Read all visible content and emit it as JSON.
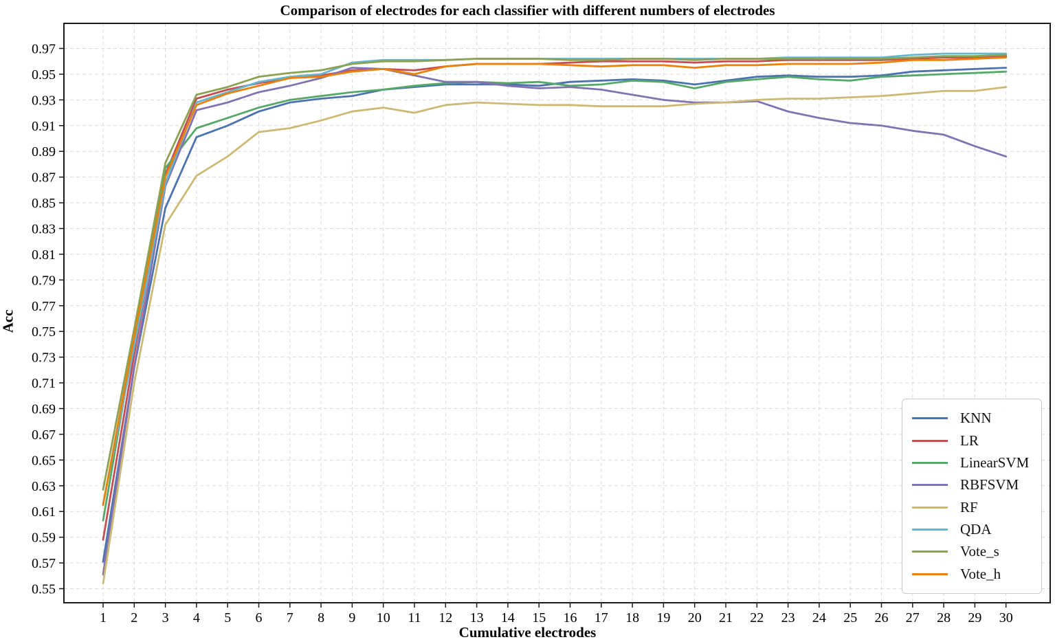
{
  "chart_data": {
    "type": "line",
    "title": "Comparison of electrodes for each classifier with different numbers of electrodes",
    "xlabel": "Cumulative electrodes",
    "ylabel": "Acc",
    "x": [
      1,
      2,
      3,
      4,
      5,
      6,
      7,
      8,
      9,
      10,
      11,
      12,
      13,
      14,
      15,
      16,
      17,
      18,
      19,
      20,
      21,
      22,
      23,
      24,
      25,
      26,
      27,
      28,
      29,
      30
    ],
    "xticks": [
      1,
      2,
      3,
      4,
      5,
      6,
      7,
      8,
      9,
      10,
      11,
      12,
      13,
      14,
      15,
      16,
      17,
      18,
      19,
      20,
      21,
      22,
      23,
      24,
      25,
      26,
      27,
      28,
      29,
      30
    ],
    "ylim": [
      0.55,
      0.97
    ],
    "ytick_step": 0.02,
    "yticks": [
      0.55,
      0.57,
      0.59,
      0.61,
      0.63,
      0.65,
      0.67,
      0.69,
      0.71,
      0.73,
      0.75,
      0.77,
      0.79,
      0.81,
      0.83,
      0.85,
      0.87,
      0.89,
      0.91,
      0.93,
      0.95,
      0.97
    ],
    "grid": true,
    "grid_style": "dashed",
    "legend_position": "lower right",
    "legend_order": [
      "KNN",
      "LR",
      "LinearSVM",
      "RBFSVM",
      "RF",
      "QDA",
      "Vote_s",
      "Vote_h"
    ],
    "series": [
      {
        "name": "KNN",
        "color": "#4C72B0",
        "values": [
          0.571,
          0.722,
          0.846,
          0.901,
          0.91,
          0.921,
          0.928,
          0.931,
          0.933,
          0.938,
          0.94,
          0.942,
          0.942,
          0.942,
          0.941,
          0.944,
          0.945,
          0.946,
          0.945,
          0.942,
          0.945,
          0.948,
          0.949,
          0.948,
          0.948,
          0.949,
          0.952,
          0.953,
          0.954,
          0.955
        ]
      },
      {
        "name": "LR",
        "color": "#C44E52",
        "values": [
          0.588,
          0.732,
          0.872,
          0.931,
          0.938,
          0.943,
          0.947,
          0.949,
          0.953,
          0.954,
          0.953,
          0.956,
          0.958,
          0.958,
          0.958,
          0.959,
          0.96,
          0.96,
          0.96,
          0.959,
          0.96,
          0.96,
          0.961,
          0.961,
          0.961,
          0.961,
          0.962,
          0.963,
          0.963,
          0.964
        ]
      },
      {
        "name": "LinearSVM",
        "color": "#55A868",
        "values": [
          0.603,
          0.744,
          0.877,
          0.908,
          0.916,
          0.924,
          0.93,
          0.933,
          0.936,
          0.938,
          0.941,
          0.943,
          0.944,
          0.943,
          0.944,
          0.941,
          0.942,
          0.945,
          0.944,
          0.939,
          0.944,
          0.946,
          0.948,
          0.946,
          0.945,
          0.948,
          0.949,
          0.95,
          0.951,
          0.952
        ]
      },
      {
        "name": "RBFSVM",
        "color": "#8172B2",
        "values": [
          0.561,
          0.722,
          0.863,
          0.922,
          0.928,
          0.936,
          0.941,
          0.947,
          0.955,
          0.954,
          0.949,
          0.944,
          0.944,
          0.941,
          0.939,
          0.94,
          0.938,
          0.934,
          0.93,
          0.928,
          0.928,
          0.929,
          0.921,
          0.916,
          0.912,
          0.91,
          0.906,
          0.903,
          0.894,
          0.886
        ]
      },
      {
        "name": "RF",
        "color": "#CCB974",
        "values": [
          0.554,
          0.71,
          0.833,
          0.871,
          0.886,
          0.905,
          0.908,
          0.914,
          0.921,
          0.924,
          0.92,
          0.926,
          0.928,
          0.927,
          0.926,
          0.926,
          0.925,
          0.925,
          0.925,
          0.927,
          0.928,
          0.93,
          0.931,
          0.931,
          0.932,
          0.933,
          0.935,
          0.937,
          0.937,
          0.94
        ]
      },
      {
        "name": "QDA",
        "color": "#64B5CD",
        "values": [
          0.616,
          0.738,
          0.865,
          0.928,
          0.936,
          0.944,
          0.948,
          0.95,
          0.959,
          0.961,
          0.961,
          0.961,
          0.962,
          0.962,
          0.962,
          0.962,
          0.962,
          0.962,
          0.962,
          0.962,
          0.962,
          0.962,
          0.963,
          0.963,
          0.963,
          0.963,
          0.965,
          0.966,
          0.966,
          0.966
        ]
      },
      {
        "name": "Vote_s",
        "color": "#8CA252",
        "values": [
          0.627,
          0.752,
          0.881,
          0.934,
          0.94,
          0.948,
          0.951,
          0.953,
          0.958,
          0.96,
          0.96,
          0.961,
          0.962,
          0.962,
          0.962,
          0.961,
          0.961,
          0.962,
          0.962,
          0.961,
          0.962,
          0.962,
          0.962,
          0.962,
          0.962,
          0.962,
          0.963,
          0.964,
          0.964,
          0.965
        ]
      },
      {
        "name": "Vote_h",
        "color": "#E8820C",
        "values": [
          0.615,
          0.746,
          0.87,
          0.926,
          0.935,
          0.941,
          0.947,
          0.948,
          0.952,
          0.954,
          0.95,
          0.956,
          0.958,
          0.958,
          0.958,
          0.957,
          0.956,
          0.957,
          0.957,
          0.955,
          0.957,
          0.957,
          0.958,
          0.958,
          0.958,
          0.959,
          0.961,
          0.961,
          0.962,
          0.963
        ]
      }
    ]
  }
}
